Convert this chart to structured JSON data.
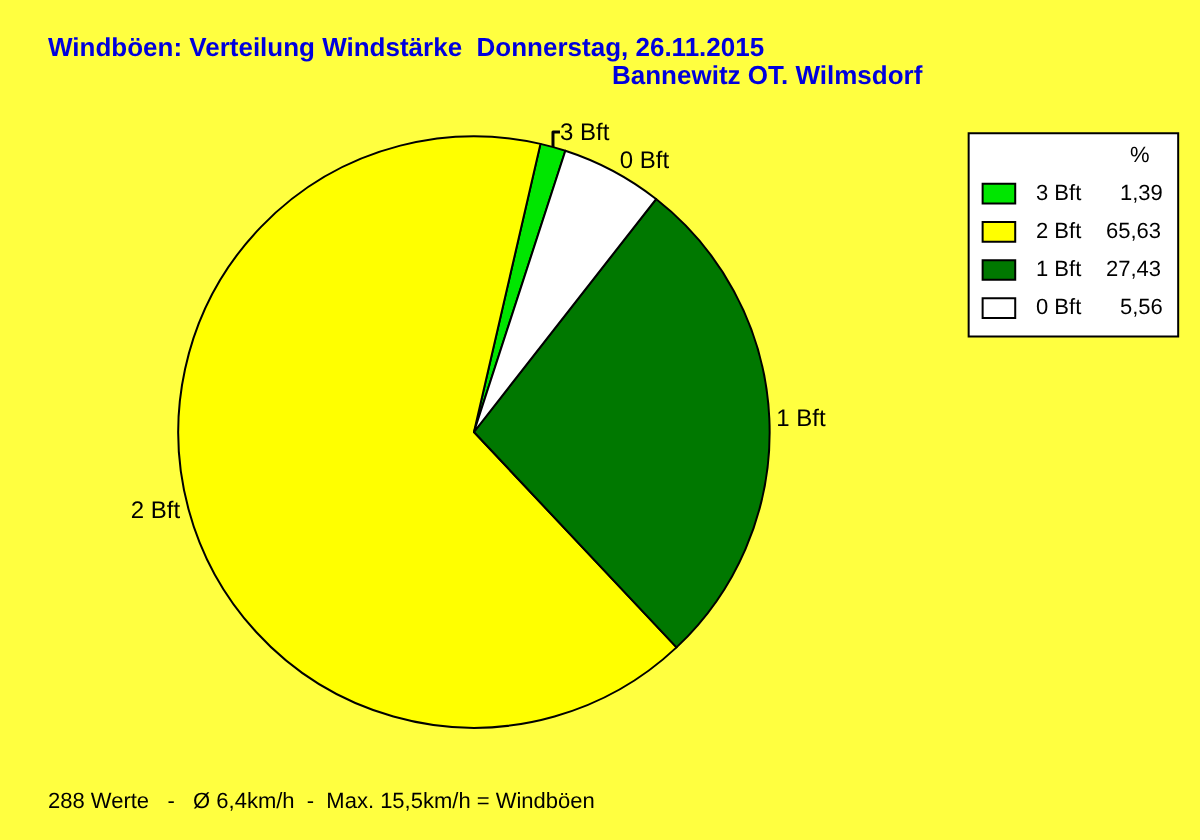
{
  "chart_data": {
    "type": "pie",
    "title": "Windböen: Verteilung Windstärke  Donnerstag, 26.11.2015",
    "subtitle": "Bannewitz OT. Wilmsdorf",
    "categories": [
      "3 Bft",
      "2 Bft",
      "1 Bft",
      "0 Bft"
    ],
    "values": [
      1.39,
      65.63,
      27.43,
      5.56
    ],
    "value_labels": [
      "1,39",
      "65,63",
      "27,43",
      "5,56"
    ],
    "colors": [
      "#00e600",
      "#ffff00",
      "#007800",
      "#ffffff"
    ],
    "legend": "top right",
    "legend_title": "%",
    "annotations": [
      "288 Werte   -   Ø 6,4km/h  -  Max. 15,5km/h = Windböen"
    ]
  }
}
